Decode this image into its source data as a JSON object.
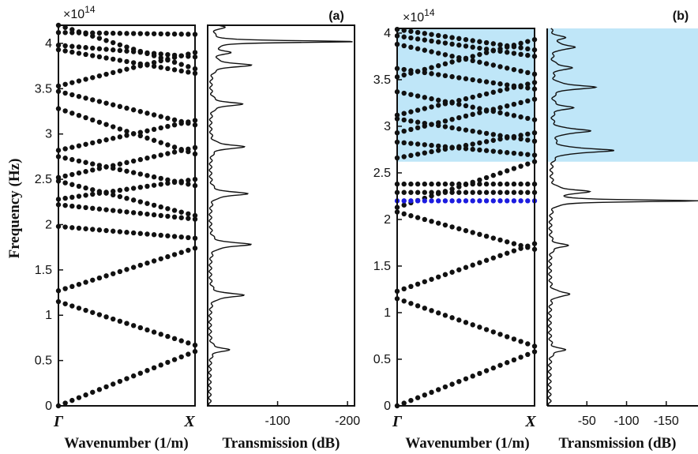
{
  "chart_data": [
    {
      "type": "scatter",
      "panel": "(a)",
      "plot": "band structure",
      "xlabel": "Wavenumber (1/m)",
      "ylabel": "Frequency (Hz)",
      "multiplier": "×10",
      "multiplier_exp": "14",
      "xtick_labels": [
        "Γ",
        "X"
      ],
      "ylim": [
        0,
        4.2
      ],
      "yticks": [
        "0",
        "0.5",
        "1",
        "1.5",
        "2",
        "2.5",
        "3",
        "3.5",
        "4"
      ],
      "bands_at_gamma": [
        0,
        1.15,
        1.27,
        1.98,
        2.22,
        2.28,
        2.48,
        2.52,
        2.75,
        2.82,
        3.28,
        3.47,
        3.53,
        3.93,
        3.98,
        4.12,
        4.2
      ],
      "bands_at_x": [
        0.6,
        0.67,
        1.74,
        1.85,
        2.06,
        2.1,
        2.43,
        2.5,
        2.78,
        2.85,
        3.1,
        3.15,
        3.67,
        3.72,
        3.85,
        3.9,
        4.1
      ],
      "series": [
        {
          "values": [
            [
              0,
              0
            ],
            [
              1,
              0.6
            ]
          ]
        },
        {
          "values": [
            [
              0,
              1.15
            ],
            [
              1,
              0.67
            ]
          ]
        },
        {
          "values": [
            [
              0,
              1.27
            ],
            [
              1,
              1.74
            ]
          ]
        },
        {
          "values": [
            [
              0,
              1.98
            ],
            [
              1,
              1.85
            ]
          ]
        },
        {
          "values": [
            [
              0,
              2.22
            ],
            [
              1,
              2.06
            ]
          ]
        },
        {
          "values": [
            [
              0,
              2.28
            ],
            [
              1,
              2.5
            ]
          ]
        },
        {
          "values": [
            [
              0,
              2.48
            ],
            [
              1,
              2.1
            ]
          ]
        },
        {
          "values": [
            [
              0,
              2.52
            ],
            [
              1,
              2.85
            ]
          ]
        },
        {
          "values": [
            [
              0,
              2.75
            ],
            [
              1,
              2.43
            ]
          ]
        },
        {
          "values": [
            [
              0,
              2.82
            ],
            [
              1,
              3.15
            ]
          ]
        },
        {
          "values": [
            [
              0,
              3.28
            ],
            [
              1,
              2.78
            ]
          ]
        },
        {
          "values": [
            [
              0,
              3.47
            ],
            [
              1,
              3.1
            ]
          ]
        },
        {
          "values": [
            [
              0,
              3.53
            ],
            [
              1,
              3.9
            ]
          ]
        },
        {
          "values": [
            [
              0,
              3.93
            ],
            [
              1,
              3.67
            ]
          ]
        },
        {
          "values": [
            [
              0,
              3.98
            ],
            [
              1,
              3.85
            ]
          ]
        },
        {
          "values": [
            [
              0,
              4.12
            ],
            [
              1,
              4.1
            ]
          ]
        },
        {
          "values": [
            [
              0,
              4.2
            ],
            [
              1,
              3.72
            ]
          ]
        }
      ]
    },
    {
      "type": "line",
      "panel": "(a)",
      "plot": "transmission",
      "xlabel": "Transmission (dB)",
      "xticks": [
        "-100",
        "-200"
      ],
      "xlim": [
        0,
        -210
      ],
      "ylim": [
        0,
        4.2
      ],
      "baseline": -3,
      "peaks": [
        {
          "f": 0.62,
          "depth": -30
        },
        {
          "f": 1.22,
          "depth": -52
        },
        {
          "f": 1.78,
          "depth": -62
        },
        {
          "f": 2.34,
          "depth": -57
        },
        {
          "f": 2.86,
          "depth": -52
        },
        {
          "f": 3.33,
          "depth": -48
        },
        {
          "f": 3.76,
          "depth": -60
        },
        {
          "f": 3.9,
          "depth": -28
        },
        {
          "f": 4.02,
          "depth": -210
        },
        {
          "f": 4.18,
          "depth": -22
        }
      ]
    },
    {
      "type": "scatter",
      "panel": "(b)",
      "plot": "band structure",
      "xlabel": "Wavenumber (1/m)",
      "multiplier": "×10",
      "multiplier_exp": "14",
      "xtick_labels": [
        "Γ",
        "X"
      ],
      "ylim": [
        0,
        4.05
      ],
      "yticks": [
        "0",
        "0.5",
        "1",
        "1.5",
        "2",
        "2.5",
        "3",
        "3.5",
        "4"
      ],
      "shaded_band": [
        2.62,
        4.05
      ],
      "shade_color": "#bfe6f8",
      "defect_mode_f": 2.2,
      "defect_color": "#1c1ce0",
      "flat_bands": [
        2.29,
        2.38
      ],
      "series": [
        {
          "values": [
            [
              0,
              0
            ],
            [
              1,
              0.58
            ]
          ]
        },
        {
          "values": [
            [
              0,
              1.15
            ],
            [
              1,
              0.64
            ]
          ]
        },
        {
          "values": [
            [
              0,
              1.23
            ],
            [
              1,
              1.74
            ]
          ]
        },
        {
          "values": [
            [
              0,
              2.08
            ],
            [
              1,
              1.68
            ]
          ]
        },
        {
          "values": [
            [
              0,
              2.13
            ],
            [
              1,
              2.62
            ]
          ]
        },
        {
          "values": [
            [
              0,
              2.66
            ],
            [
              1,
              2.93
            ]
          ]
        },
        {
          "values": [
            [
              0,
              2.83
            ],
            [
              1,
              2.69
            ]
          ]
        },
        {
          "values": [
            [
              0,
              2.93
            ],
            [
              1,
              3.29
            ]
          ]
        },
        {
          "values": [
            [
              0,
              3.08
            ],
            [
              1,
              2.84
            ]
          ]
        },
        {
          "values": [
            [
              0,
              3.12
            ],
            [
              1,
              3.47
            ]
          ]
        },
        {
          "values": [
            [
              0,
              3.37
            ],
            [
              1,
              3.07
            ]
          ]
        },
        {
          "values": [
            [
              0,
              3.53
            ],
            [
              1,
              3.93
            ]
          ]
        },
        {
          "values": [
            [
              0,
              3.62
            ],
            [
              1,
              3.4
            ]
          ]
        },
        {
          "values": [
            [
              0,
              3.88
            ],
            [
              1,
              3.56
            ]
          ]
        },
        {
          "values": [
            [
              0,
              3.97
            ],
            [
              1,
              3.75
            ]
          ]
        },
        {
          "values": [
            [
              0,
              4.04
            ],
            [
              1,
              3.82
            ]
          ]
        }
      ]
    },
    {
      "type": "line",
      "panel": "(b)",
      "plot": "transmission",
      "xlabel": "Transmission (dB)",
      "xticks": [
        "-50",
        "-100",
        "-150"
      ],
      "xlim": [
        0,
        -190
      ],
      "ylim": [
        0,
        4.05
      ],
      "baseline": -3,
      "peaks": [
        {
          "f": 0.6,
          "depth": -22
        },
        {
          "f": 1.2,
          "depth": -30
        },
        {
          "f": 1.72,
          "depth": -25
        },
        {
          "f": 2.2,
          "depth": -190
        },
        {
          "f": 2.3,
          "depth": -50
        },
        {
          "f": 2.74,
          "depth": -85
        },
        {
          "f": 2.95,
          "depth": -55
        },
        {
          "f": 3.2,
          "depth": -30
        },
        {
          "f": 3.42,
          "depth": -60
        },
        {
          "f": 3.63,
          "depth": -30
        },
        {
          "f": 3.85,
          "depth": -35
        },
        {
          "f": 3.95,
          "depth": -20
        }
      ]
    }
  ]
}
